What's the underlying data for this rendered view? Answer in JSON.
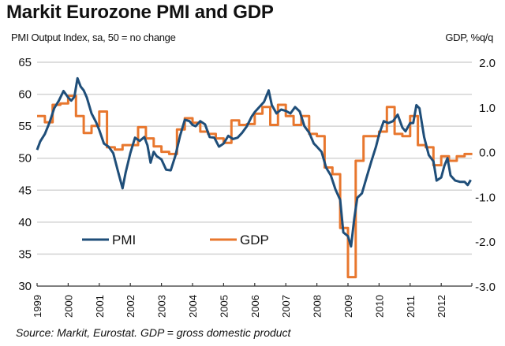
{
  "chart_data": {
    "type": "line",
    "title": "Markit Eurozone PMI and GDP",
    "ylabel_left": "PMI Output Index, sa, 50 = no change",
    "ylabel_right": "GDP, %q/q",
    "source": "Source: Markit, Eurostat. GDP = gross domestic product",
    "ylim_left": [
      30,
      65
    ],
    "ylim_right": [
      -3.0,
      2.0
    ],
    "yticks_left": [
      "65",
      "60",
      "55",
      "50",
      "45",
      "40",
      "35",
      "30"
    ],
    "yticks_left_values": [
      65,
      60,
      55,
      50,
      45,
      40,
      35,
      30
    ],
    "yticks_right": [
      "2.0",
      "1.0",
      "0.0",
      "-1.0",
      "-2.0",
      "-3.0"
    ],
    "yticks_right_values": [
      2.0,
      1.0,
      0.0,
      -1.0,
      -2.0,
      -3.0
    ],
    "xticks": [
      "1999",
      "2000",
      "2001",
      "2002",
      "2003",
      "2004",
      "2005",
      "2006",
      "2007",
      "2008",
      "2009",
      "2010",
      "2011",
      "2012"
    ],
    "xlim": [
      1999.0,
      2013.0
    ],
    "grid": "horizontal",
    "legend": {
      "placement": "bottom-left",
      "entries": [
        "PMI",
        "GDP"
      ]
    },
    "series": [
      {
        "name": "PMI",
        "axis": "left",
        "color": "#1f4e79",
        "x": [
          1999.0,
          1999.1,
          1999.25,
          1999.4,
          1999.55,
          1999.7,
          1999.85,
          2000.0,
          2000.1,
          2000.2,
          2000.3,
          2000.4,
          2000.5,
          2000.6,
          2000.75,
          2000.9,
          2001.0,
          2001.15,
          2001.3,
          2001.45,
          2001.6,
          2001.75,
          2001.85,
          2002.0,
          2002.15,
          2002.3,
          2002.45,
          2002.55,
          2002.65,
          2002.75,
          2002.85,
          2003.0,
          2003.15,
          2003.3,
          2003.45,
          2003.6,
          2003.75,
          2003.9,
          2004.0,
          2004.1,
          2004.25,
          2004.4,
          2004.55,
          2004.7,
          2004.85,
          2005.0,
          2005.15,
          2005.3,
          2005.45,
          2005.6,
          2005.75,
          2005.9,
          2006.0,
          2006.15,
          2006.3,
          2006.45,
          2006.55,
          2006.7,
          2006.85,
          2007.0,
          2007.15,
          2007.3,
          2007.45,
          2007.6,
          2007.75,
          2007.9,
          2008.0,
          2008.15,
          2008.3,
          2008.45,
          2008.6,
          2008.75,
          2008.85,
          2009.0,
          2009.1,
          2009.2,
          2009.3,
          2009.45,
          2009.6,
          2009.75,
          2009.9,
          2010.0,
          2010.15,
          2010.3,
          2010.45,
          2010.6,
          2010.75,
          2010.85,
          2011.0,
          2011.1,
          2011.2,
          2011.3,
          2011.45,
          2011.6,
          2011.75,
          2011.85,
          2012.0,
          2012.1,
          2012.2,
          2012.3,
          2012.45,
          2012.6,
          2012.75,
          2012.85,
          2012.95
        ],
        "values": [
          51.3,
          52.6,
          53.8,
          55.6,
          57.8,
          59.0,
          60.5,
          59.5,
          59.0,
          59.6,
          62.5,
          61.2,
          60.6,
          59.5,
          57.0,
          55.6,
          54.4,
          52.3,
          51.8,
          50.8,
          48.0,
          45.3,
          47.8,
          50.8,
          53.2,
          52.7,
          53.3,
          52.0,
          49.3,
          51.0,
          50.3,
          49.8,
          48.2,
          48.1,
          50.4,
          53.5,
          56.0,
          55.8,
          55.2,
          55.0,
          55.8,
          55.3,
          53.3,
          53.2,
          51.8,
          52.3,
          53.5,
          53.0,
          53.2,
          54.0,
          55.0,
          56.5,
          57.2,
          58.0,
          58.8,
          60.6,
          58.3,
          57.0,
          57.6,
          57.4,
          57.0,
          58.0,
          57.3,
          55.0,
          54.0,
          52.3,
          51.8,
          51.0,
          48.5,
          47.3,
          45.1,
          43.5,
          38.4,
          37.8,
          36.2,
          40.5,
          43.8,
          44.5,
          47.0,
          49.5,
          51.8,
          53.7,
          55.8,
          55.5,
          55.8,
          56.8,
          54.8,
          54.2,
          55.5,
          55.5,
          58.3,
          57.8,
          53.3,
          50.5,
          49.5,
          46.5,
          47.0,
          48.8,
          50.0,
          47.3,
          46.5,
          46.3,
          46.3,
          45.8,
          46.6
        ]
      },
      {
        "name": "GDP",
        "axis": "right",
        "color": "#e8772e",
        "x": [
          1999.0,
          1999.25,
          1999.5,
          1999.75,
          2000.0,
          2000.25,
          2000.5,
          2000.75,
          2001.0,
          2001.25,
          2001.5,
          2001.75,
          2002.0,
          2002.25,
          2002.5,
          2002.75,
          2003.0,
          2003.25,
          2003.5,
          2003.75,
          2004.0,
          2004.25,
          2004.5,
          2004.75,
          2005.0,
          2005.25,
          2005.5,
          2005.75,
          2006.0,
          2006.25,
          2006.5,
          2006.75,
          2007.0,
          2007.25,
          2007.5,
          2007.75,
          2008.0,
          2008.25,
          2008.5,
          2008.75,
          2009.0,
          2009.25,
          2009.5,
          2009.75,
          2010.0,
          2010.25,
          2010.5,
          2010.75,
          2011.0,
          2011.25,
          2011.5,
          2011.75,
          2012.0,
          2012.25,
          2012.5,
          2012.75
        ],
        "values": [
          0.8,
          0.66,
          1.05,
          1.08,
          1.25,
          0.8,
          0.42,
          0.58,
          0.9,
          0.1,
          0.05,
          0.15,
          0.15,
          0.55,
          0.3,
          0.12,
          0.0,
          -0.05,
          0.5,
          0.75,
          0.65,
          0.45,
          0.4,
          0.3,
          0.2,
          0.7,
          0.6,
          0.62,
          0.85,
          1.0,
          0.6,
          1.05,
          0.8,
          0.6,
          0.8,
          0.4,
          0.35,
          -0.35,
          -0.5,
          -1.7,
          -2.8,
          -0.2,
          0.35,
          0.35,
          0.45,
          1.0,
          0.4,
          0.35,
          0.8,
          0.15,
          0.1,
          -0.3,
          -0.1,
          -0.2,
          -0.1,
          -0.05
        ]
      }
    ]
  }
}
